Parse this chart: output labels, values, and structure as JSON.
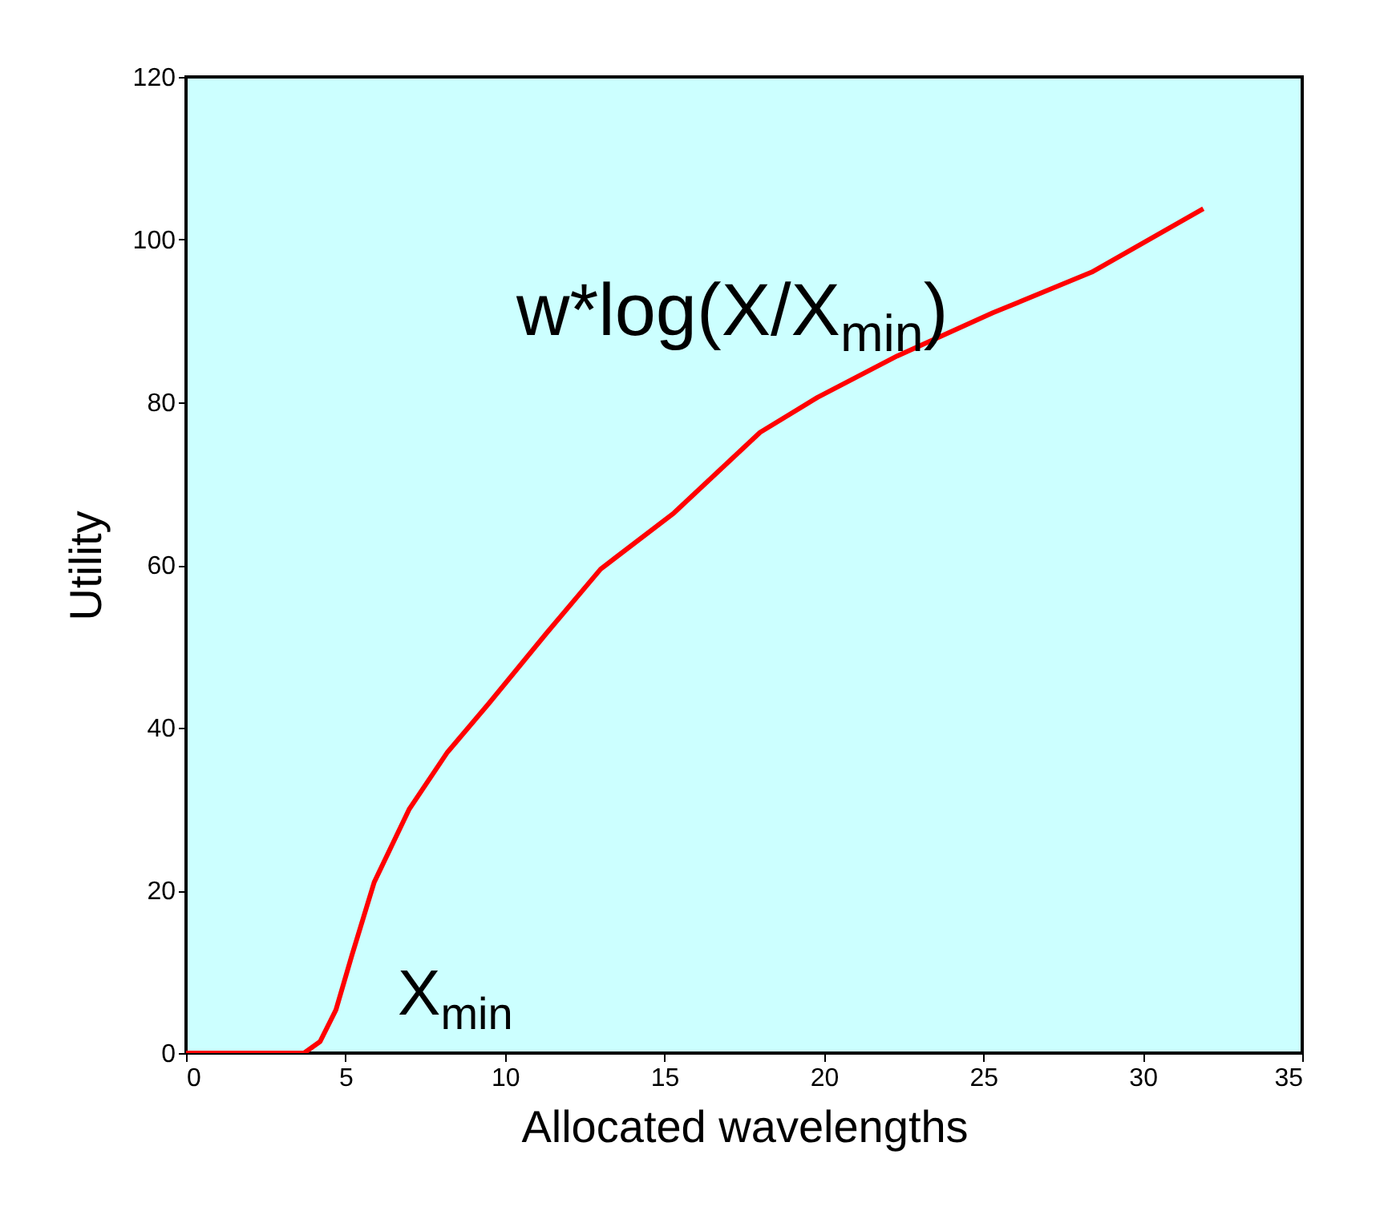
{
  "chart_data": {
    "type": "line",
    "xlabel": "Allocated wavelengths",
    "ylabel": "Utility",
    "annotations": [
      "w*log(X/X$_{min}$)",
      "X$_{min}$"
    ],
    "series": [
      {
        "color": "#ff0000",
        "x": [
          0,
          1.5,
          3.7,
          4.2,
          4.7,
          5.2,
          5.9,
          7.0,
          8.2,
          9.5,
          11.3,
          13.0,
          15.3,
          18.0,
          19.8,
          22.3,
          25.3,
          28.4,
          31.9
        ],
        "values": [
          0,
          0,
          0,
          1.4,
          5.3,
          12,
          21,
          30,
          37,
          43,
          51.6,
          59.5,
          66.4,
          76.3,
          80.6,
          85.7,
          91,
          96,
          103.8
        ]
      }
    ],
    "xlim": [
      0,
      35
    ],
    "xticks": [
      0,
      5,
      10,
      15,
      20,
      25,
      30,
      35
    ],
    "ylim": [
      0,
      120
    ],
    "yticks": [
      0,
      20,
      40,
      60,
      80,
      100,
      120
    ],
    "grid": false,
    "marker": "none",
    "line_style": "solid"
  }
}
